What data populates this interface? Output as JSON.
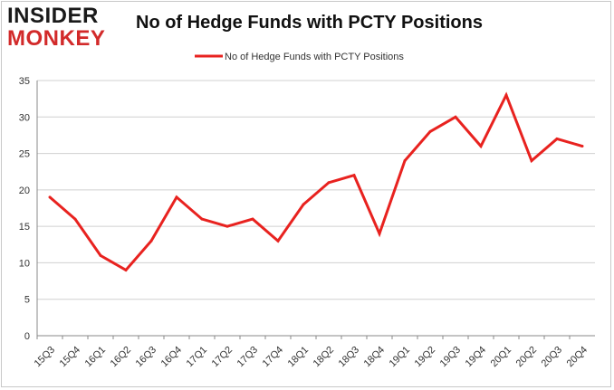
{
  "logo": {
    "line1": "INSIDER",
    "line2": "MONKEY"
  },
  "chart_data": {
    "type": "line",
    "title": "No of Hedge Funds with PCTY Positions",
    "xlabel": "",
    "ylabel": "",
    "ylim": [
      0,
      35
    ],
    "yticks": [
      0,
      5,
      10,
      15,
      20,
      25,
      30,
      35
    ],
    "grid": "horizontal",
    "legend_position": "top",
    "colors": {
      "series": "#e8221f",
      "grid": "#d0d0d0",
      "axis": "#888888"
    },
    "categories": [
      "15Q3",
      "15Q4",
      "16Q1",
      "16Q2",
      "16Q3",
      "16Q4",
      "17Q1",
      "17Q2",
      "17Q3",
      "17Q4",
      "18Q1",
      "18Q2",
      "18Q3",
      "18Q4",
      "19Q1",
      "19Q2",
      "19Q3",
      "19Q4",
      "20Q1",
      "20Q2",
      "20Q3",
      "20Q4"
    ],
    "series": [
      {
        "name": "No of Hedge Funds with PCTY Positions",
        "values": [
          19,
          16,
          11,
          9,
          13,
          19,
          16,
          15,
          16,
          13,
          18,
          21,
          22,
          14,
          24,
          28,
          30,
          26,
          33,
          24,
          27,
          26
        ]
      }
    ]
  }
}
